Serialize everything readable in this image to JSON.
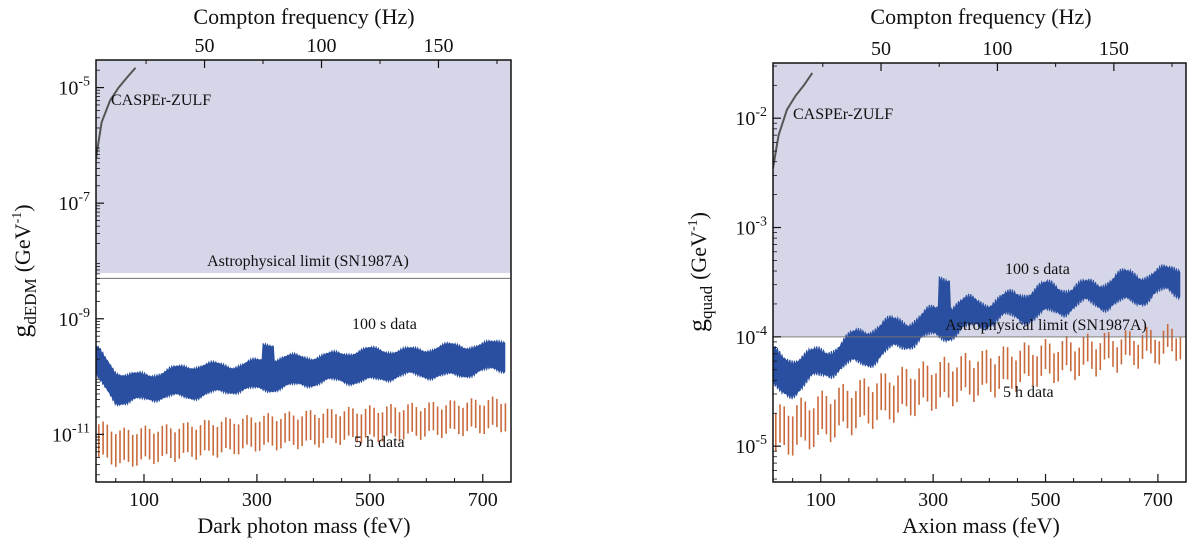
{
  "chart_data": [
    {
      "type": "line",
      "top_axis_label": "Compton frequency (Hz)",
      "top_ticks": [
        50,
        100,
        150
      ],
      "xlabel": "Dark photon mass (feV)",
      "ylabel_main": "g",
      "ylabel_sub": "dEDM",
      "ylabel_unit": "(GeV",
      "ylabel_unit_sup": "-1",
      "ylabel_unit_close": ")",
      "x_ticks": [
        100,
        300,
        500,
        700
      ],
      "x_tick_labels": [
        "100",
        "300",
        "500",
        "700"
      ],
      "y_scale": "log",
      "y_tick_base": "10",
      "y_tick_exps": [
        "-5",
        "-7",
        "-9",
        "-11"
      ],
      "ylim": [
        1.5e-12,
        3e-05
      ],
      "xlim": [
        15,
        750
      ],
      "top_xlim": [
        3.6,
        181
      ],
      "shade_color": "#d5d6e8",
      "band_color": "#2a4fa0",
      "bar_color": "#c96a3d",
      "ref_line_color": "#707070",
      "astro_label": "Astrophysical limit (SN1987A)",
      "astro_limit": 5e-09,
      "caspr_label": "CASPEr-ZULF",
      "caspr_curve": {
        "x": [
          15,
          25,
          40,
          55,
          70,
          85
        ],
        "y": [
          6e-07,
          2.5e-06,
          6e-06,
          1e-05,
          1.5e-05,
          2.2e-05
        ]
      },
      "series_100s": {
        "label": "100 s data",
        "x": [
          15,
          30,
          50,
          70,
          100,
          150,
          200,
          250,
          300,
          350,
          400,
          450,
          500,
          550,
          600,
          650,
          700,
          740
        ],
        "lower": [
          1e-10,
          7e-11,
          4e-11,
          3.5e-11,
          4e-11,
          4.5e-11,
          5e-11,
          5.5e-11,
          6e-11,
          7e-11,
          7.5e-11,
          8.5e-11,
          9e-11,
          1e-10,
          1.05e-10,
          1.1e-10,
          1.2e-10,
          1.3e-10
        ],
        "upper": [
          3e-10,
          2e-10,
          1.2e-10,
          1e-10,
          1.1e-10,
          1.3e-10,
          1.5e-10,
          1.6e-10,
          1.8e-10,
          2e-10,
          2.3e-10,
          2.5e-10,
          2.7e-10,
          2.9e-10,
          3e-10,
          3.2e-10,
          3.5e-10,
          4.5e-10
        ]
      },
      "series_5h": {
        "label": "5 h data",
        "x": [
          20,
          60,
          100,
          150,
          200,
          250,
          300,
          350,
          400,
          450,
          500,
          550,
          600,
          650,
          700,
          740
        ],
        "lower": [
          4e-12,
          3e-12,
          3.5e-12,
          4e-12,
          4.5e-12,
          5e-12,
          6e-12,
          6.5e-12,
          7e-12,
          8e-12,
          8.5e-12,
          9e-12,
          1e-11,
          1.1e-11,
          1.2e-11,
          1.3e-11
        ],
        "upper": [
          1.5e-11,
          1.1e-11,
          1.2e-11,
          1.3e-11,
          1.5e-11,
          1.7e-11,
          1.9e-11,
          2.1e-11,
          2.3e-11,
          2.5e-11,
          2.7e-11,
          2.9e-11,
          3.1e-11,
          3.4e-11,
          3.7e-11,
          4e-11
        ]
      }
    },
    {
      "type": "line",
      "top_axis_label": "Compton frequency (Hz)",
      "top_ticks": [
        50,
        100,
        150
      ],
      "xlabel": "Axion mass (feV)",
      "ylabel_main": "g",
      "ylabel_sub": "quad",
      "ylabel_unit": "(GeV",
      "ylabel_unit_sup": "-1",
      "ylabel_unit_close": ")",
      "x_ticks": [
        100,
        300,
        500,
        700
      ],
      "x_tick_labels": [
        "100",
        "300",
        "500",
        "700"
      ],
      "y_scale": "log",
      "y_tick_base": "10",
      "y_tick_exps": [
        "-2",
        "-3",
        "-4",
        "-5"
      ],
      "ylim": [
        4.7e-06,
        0.032
      ],
      "xlim": [
        15,
        750
      ],
      "top_xlim": [
        3.6,
        181
      ],
      "shade_color": "#d5d6e8",
      "band_color": "#2a4fa0",
      "bar_color": "#c96a3d",
      "ref_line_color": "#707070",
      "astro_label": "Astrophysical limit (SN1987A)",
      "astro_limit": 0.0001,
      "caspr_label": "CASPEr-ZULF",
      "caspr_curve": {
        "x": [
          15,
          25,
          40,
          55,
          70,
          85
        ],
        "y": [
          0.0035,
          0.007,
          0.012,
          0.016,
          0.02,
          0.026
        ]
      },
      "series_100s": {
        "label": "100 s data",
        "x": [
          15,
          30,
          50,
          70,
          100,
          150,
          200,
          250,
          300,
          350,
          400,
          450,
          500,
          550,
          600,
          650,
          700,
          740
        ],
        "lower": [
          3.5e-05,
          3.2e-05,
          3.4e-05,
          3.7e-05,
          4.3e-05,
          5.5e-05,
          6.8e-05,
          8.3e-05,
          0.0001,
          0.00012,
          0.000135,
          0.00015,
          0.00017,
          0.000185,
          0.0002,
          0.00022,
          0.00024,
          0.00025
        ],
        "upper": [
          7e-05,
          6e-05,
          6.2e-05,
          6.5e-05,
          7.5e-05,
          9.5e-05,
          0.00012,
          0.000145,
          0.00017,
          0.000195,
          0.00022,
          0.000245,
          0.00027,
          0.000295,
          0.00032,
          0.00035,
          0.00039,
          0.00046
        ]
      },
      "series_5h": {
        "label": "5 h data",
        "x": [
          20,
          60,
          100,
          150,
          200,
          250,
          300,
          350,
          400,
          450,
          500,
          550,
          600,
          650,
          700,
          740
        ],
        "lower": [
          9e-06,
          1e-05,
          1.2e-05,
          1.5e-05,
          1.8e-05,
          2.1e-05,
          2.5e-05,
          2.9e-05,
          3.3e-05,
          3.8e-05,
          4.3e-05,
          4.8e-05,
          5.4e-05,
          6e-05,
          6.6e-05,
          7.2e-05
        ],
        "upper": [
          2e-05,
          2.3e-05,
          2.7e-05,
          3.3e-05,
          3.9e-05,
          4.6e-05,
          5.3e-05,
          6e-05,
          6.7e-05,
          7.4e-05,
          8.1e-05,
          8.8e-05,
          9.5e-05,
          0.0001,
          0.000108,
          0.000115
        ]
      }
    }
  ]
}
